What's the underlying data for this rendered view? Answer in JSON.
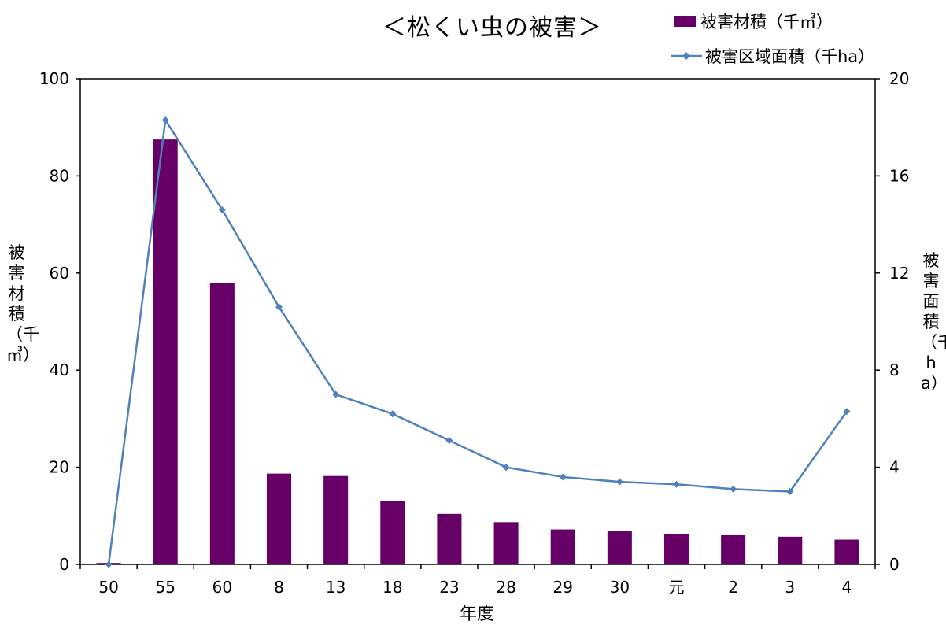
{
  "chart_data": {
    "type": "bar+line",
    "title": "＜松くい虫の被害＞",
    "xlabel": "年度",
    "categories": [
      "50",
      "55",
      "60",
      "8",
      "13",
      "18",
      "23",
      "28",
      "29",
      "30",
      "元",
      "2",
      "3",
      "4"
    ],
    "series": [
      {
        "name": "被害材積（千㎥）",
        "type": "bar",
        "axis": "left",
        "color": "#660066",
        "values": [
          0.3,
          87.5,
          58.0,
          18.7,
          18.2,
          13.0,
          10.4,
          8.7,
          7.2,
          6.9,
          6.3,
          6.0,
          5.7,
          5.1
        ]
      },
      {
        "name": "被害区域面積（千ha）",
        "type": "line",
        "axis": "right",
        "color": "#4f81bd",
        "marker": "diamond",
        "values": [
          0.0,
          18.3,
          14.6,
          10.6,
          7.0,
          6.2,
          5.1,
          4.0,
          3.6,
          3.4,
          3.3,
          3.1,
          3.0,
          6.3
        ]
      }
    ],
    "ylabel_left": "被害材積（千㎥）",
    "ylabel_right": "被害面積（千ha）",
    "ylim_left": [
      0,
      100
    ],
    "yticks_left": [
      "0",
      "20",
      "40",
      "60",
      "80",
      "100"
    ],
    "ylim_right": [
      0,
      20
    ],
    "yticks_right": [
      "0",
      "4",
      "8",
      "12",
      "16",
      "20"
    ],
    "grid": false,
    "legend_position": "top-right"
  }
}
